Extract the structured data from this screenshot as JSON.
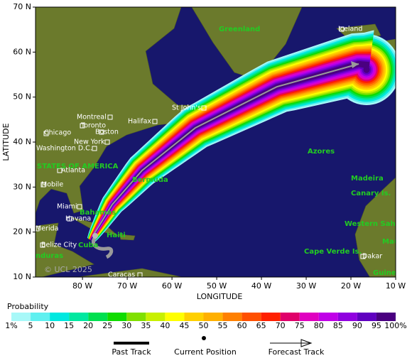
{
  "axes": {
    "x_title": "LONGITUDE",
    "y_title": "LATITUDE",
    "xlim": [
      -90.5,
      -10
    ],
    "ylim": [
      10,
      70
    ],
    "xticks": [
      {
        "value": -80,
        "label": "80 W"
      },
      {
        "value": -70,
        "label": "70 W"
      },
      {
        "value": -60,
        "label": "60 W"
      },
      {
        "value": -50,
        "label": "50 W"
      },
      {
        "value": -40,
        "label": "40 W"
      },
      {
        "value": -30,
        "label": "30 W"
      },
      {
        "value": -20,
        "label": "20 W"
      },
      {
        "value": -10,
        "label": "10 W"
      }
    ],
    "yticks": [
      {
        "value": 10,
        "label": "10 N"
      },
      {
        "value": 20,
        "label": "20 N"
      },
      {
        "value": 30,
        "label": "30 N"
      },
      {
        "value": 40,
        "label": "40 N"
      },
      {
        "value": 50,
        "label": "50 N"
      },
      {
        "value": 60,
        "label": "60 N"
      },
      {
        "value": 70,
        "label": "70 N"
      }
    ]
  },
  "cities": [
    "Montreal",
    "Toronto",
    "Chicago",
    "Boston",
    "Halifax",
    "New York",
    "Washington D.C.",
    "St John's",
    "Atlanta",
    "Mobile",
    "Miami",
    "Havana",
    "Merida",
    "Belize City",
    "Caracas",
    "Dakar",
    "Iceland"
  ],
  "regions": [
    "Greenland",
    "STATES OF AMERICA",
    "Bermuda",
    "Azores",
    "Madeira",
    "Canary Is.",
    "Western Saha",
    "Bahamas",
    "Cape Verde Is.",
    "Mauri",
    "Guinea",
    "nduras",
    "Haiti",
    "Cuba"
  ],
  "copyright": "© UCL 2025",
  "legend": {
    "title": "Probability",
    "labels": [
      "1%",
      "5",
      "10",
      "15",
      "20",
      "25",
      "30",
      "35",
      "40",
      "45",
      "50",
      "55",
      "60",
      "65",
      "70",
      "75",
      "80",
      "85",
      "90",
      "95",
      "100%"
    ],
    "colors": [
      "#a8f8f8",
      "#60f0f0",
      "#00e8e0",
      "#00e8a0",
      "#00e050",
      "#10dc00",
      "#80e000",
      "#c8f000",
      "#ffff00",
      "#ffd000",
      "#ffb000",
      "#ff8000",
      "#ff5000",
      "#ff2000",
      "#e0006a",
      "#e000c0",
      "#c000e8",
      "#9000e0",
      "#6000c0",
      "#4a0080"
    ]
  },
  "track_legend": {
    "past": "Past Track",
    "current": "Current Position",
    "forecast": "Forecast Track"
  }
}
